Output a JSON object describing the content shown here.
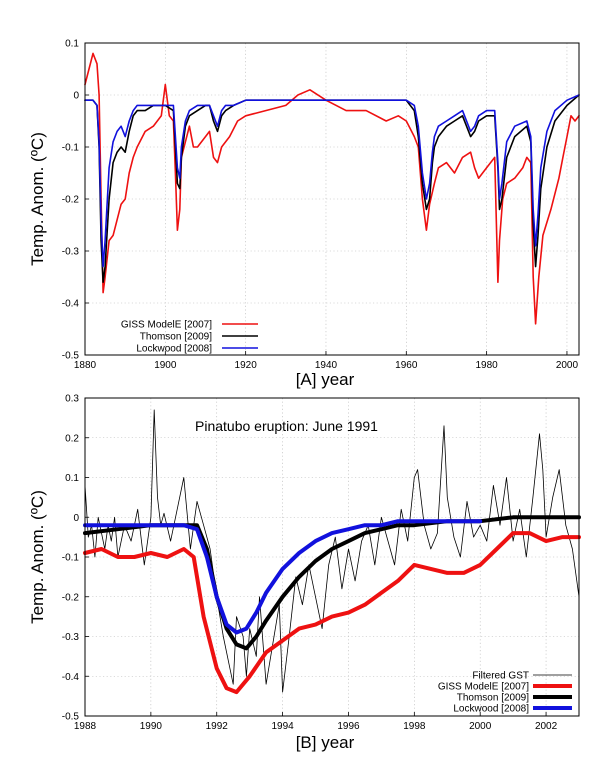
{
  "chart_data": [
    {
      "type": "line",
      "panel": "A",
      "xlabel": "[A]   year",
      "ylabel": "Temp. Anom. (ºC)",
      "xlim": [
        1880,
        2003
      ],
      "ylim": [
        -0.5,
        0.1
      ],
      "xticks": [
        "1880",
        "1900",
        "1920",
        "1940",
        "1960",
        "1980",
        "2000"
      ],
      "yticks": [
        "0.1",
        "0",
        "-0.1",
        "-0.2",
        "-0.3",
        "-0.4",
        "-0.5"
      ],
      "grid": true,
      "legend_position": "bottom-left",
      "series": [
        {
          "name": "GISS ModelE [2007]",
          "color": "#ee1111",
          "x": [
            1880,
            1881,
            1882,
            1883,
            1883.5,
            1884,
            1884.5,
            1885,
            1886,
            1887,
            1888,
            1889,
            1890,
            1891,
            1892,
            1893,
            1895,
            1897,
            1899,
            1900,
            1901,
            1902,
            1902.5,
            1903,
            1903.6,
            1904,
            1905,
            1906,
            1907,
            1908,
            1910,
            1911,
            1912,
            1913,
            1914,
            1916,
            1918,
            1920,
            1925,
            1930,
            1933,
            1936,
            1940,
            1945,
            1950,
            1955,
            1958,
            1960,
            1962,
            1963,
            1964,
            1965,
            1965.8,
            1967,
            1968,
            1970,
            1972,
            1974,
            1976,
            1977,
            1978,
            1980,
            1981,
            1982,
            1982.8,
            1983.2,
            1984,
            1985,
            1987,
            1989,
            1990,
            1991,
            1991.6,
            1992.2,
            1993,
            1994,
            1996,
            1998,
            1999,
            2000,
            2001,
            2002,
            2003
          ],
          "values": [
            0.02,
            0.05,
            0.08,
            0.06,
            0.0,
            -0.2,
            -0.38,
            -0.35,
            -0.28,
            -0.27,
            -0.24,
            -0.21,
            -0.2,
            -0.15,
            -0.12,
            -0.1,
            -0.07,
            -0.06,
            -0.04,
            0.02,
            -0.04,
            -0.05,
            -0.15,
            -0.26,
            -0.22,
            -0.12,
            -0.09,
            -0.06,
            -0.1,
            -0.1,
            -0.08,
            -0.07,
            -0.12,
            -0.13,
            -0.1,
            -0.08,
            -0.05,
            -0.04,
            -0.03,
            -0.02,
            0.0,
            0.01,
            -0.01,
            -0.03,
            -0.03,
            -0.05,
            -0.04,
            -0.05,
            -0.08,
            -0.1,
            -0.2,
            -0.26,
            -0.21,
            -0.17,
            -0.14,
            -0.13,
            -0.15,
            -0.12,
            -0.11,
            -0.14,
            -0.16,
            -0.14,
            -0.13,
            -0.12,
            -0.36,
            -0.28,
            -0.2,
            -0.17,
            -0.16,
            -0.14,
            -0.12,
            -0.13,
            -0.35,
            -0.44,
            -0.35,
            -0.27,
            -0.22,
            -0.16,
            -0.12,
            -0.08,
            -0.04,
            -0.05,
            -0.04
          ]
        },
        {
          "name": "Thomson [2009]",
          "color": "#000000",
          "x": [
            1880,
            1882,
            1883,
            1883.5,
            1884,
            1884.5,
            1885,
            1886,
            1887,
            1888,
            1889,
            1890,
            1891,
            1892,
            1893,
            1895,
            1897,
            1900,
            1902,
            1902.5,
            1903,
            1903.6,
            1904,
            1905,
            1906,
            1908,
            1910,
            1911,
            1912,
            1913,
            1914,
            1915,
            1917,
            1920,
            1930,
            1940,
            1950,
            1955,
            1958,
            1960,
            1962,
            1963,
            1964,
            1965,
            1965.8,
            1966.5,
            1967,
            1968,
            1970,
            1972,
            1974,
            1976,
            1977,
            1978,
            1980,
            1982,
            1982.8,
            1983.2,
            1983.8,
            1985,
            1987,
            1990,
            1991,
            1991.6,
            1992.2,
            1992.8,
            1993.5,
            1995,
            1997,
            2000,
            2003
          ],
          "values": [
            -0.01,
            -0.01,
            -0.02,
            -0.1,
            -0.28,
            -0.36,
            -0.33,
            -0.2,
            -0.13,
            -0.11,
            -0.1,
            -0.11,
            -0.07,
            -0.04,
            -0.03,
            -0.03,
            -0.02,
            -0.02,
            -0.03,
            -0.1,
            -0.17,
            -0.18,
            -0.12,
            -0.06,
            -0.04,
            -0.03,
            -0.02,
            -0.02,
            -0.05,
            -0.07,
            -0.04,
            -0.03,
            -0.02,
            -0.01,
            -0.01,
            -0.01,
            -0.01,
            -0.01,
            -0.01,
            -0.01,
            -0.03,
            -0.08,
            -0.17,
            -0.22,
            -0.2,
            -0.13,
            -0.1,
            -0.08,
            -0.06,
            -0.05,
            -0.04,
            -0.08,
            -0.07,
            -0.05,
            -0.04,
            -0.04,
            -0.14,
            -0.22,
            -0.2,
            -0.12,
            -0.08,
            -0.06,
            -0.09,
            -0.25,
            -0.33,
            -0.27,
            -0.18,
            -0.1,
            -0.05,
            -0.02,
            0.0
          ]
        },
        {
          "name": "Lockwood [2008]",
          "color": "#1111dd",
          "x": [
            1880,
            1882,
            1883,
            1883.5,
            1884,
            1884.5,
            1885,
            1886,
            1887,
            1888,
            1889,
            1890,
            1891,
            1892,
            1893,
            1895,
            1897,
            1900,
            1902,
            1902.5,
            1903,
            1903.6,
            1904,
            1905,
            1906,
            1908,
            1910,
            1911,
            1912,
            1913,
            1914,
            1915,
            1917,
            1920,
            1930,
            1940,
            1950,
            1955,
            1958,
            1960,
            1962,
            1963,
            1964,
            1965,
            1965.8,
            1966.5,
            1967,
            1968,
            1970,
            1972,
            1974,
            1976,
            1977,
            1978,
            1980,
            1982,
            1982.8,
            1983.2,
            1983.8,
            1985,
            1987,
            1990,
            1991,
            1991.6,
            1992.2,
            1992.8,
            1993.5,
            1995,
            1997,
            2000,
            2003
          ],
          "values": [
            -0.01,
            -0.01,
            -0.02,
            -0.09,
            -0.24,
            -0.33,
            -0.28,
            -0.14,
            -0.09,
            -0.07,
            -0.06,
            -0.08,
            -0.05,
            -0.03,
            -0.02,
            -0.02,
            -0.02,
            -0.02,
            -0.02,
            -0.08,
            -0.14,
            -0.16,
            -0.1,
            -0.05,
            -0.03,
            -0.02,
            -0.02,
            -0.02,
            -0.04,
            -0.06,
            -0.03,
            -0.02,
            -0.02,
            -0.01,
            -0.01,
            -0.01,
            -0.01,
            -0.01,
            -0.01,
            -0.01,
            -0.02,
            -0.06,
            -0.15,
            -0.2,
            -0.17,
            -0.11,
            -0.08,
            -0.06,
            -0.05,
            -0.04,
            -0.03,
            -0.07,
            -0.06,
            -0.04,
            -0.03,
            -0.03,
            -0.13,
            -0.2,
            -0.17,
            -0.09,
            -0.06,
            -0.05,
            -0.08,
            -0.22,
            -0.29,
            -0.23,
            -0.14,
            -0.07,
            -0.03,
            -0.01,
            0.0
          ]
        }
      ]
    },
    {
      "type": "line",
      "panel": "B",
      "xlabel": "[B]   year",
      "ylabel": "Temp. Anom. (ºC)",
      "annotation": "Pinatubo eruption: June 1991",
      "xlim": [
        1988,
        2003
      ],
      "ylim": [
        -0.5,
        0.3
      ],
      "xticks": [
        "1988",
        "1990",
        "1992",
        "1994",
        "1996",
        "1998",
        "2000",
        "2002"
      ],
      "yticks": [
        "0.3",
        "0.2",
        "0.1",
        "0",
        "-0.1",
        "-0.2",
        "-0.3",
        "-0.4",
        "-0.5"
      ],
      "grid": true,
      "legend_position": "bottom-right",
      "series": [
        {
          "name": "Filtered GST",
          "color": "#000000",
          "x": [
            1988.0,
            1988.1,
            1988.2,
            1988.3,
            1988.4,
            1988.5,
            1988.6,
            1988.7,
            1988.8,
            1988.9,
            1989.0,
            1989.2,
            1989.4,
            1989.6,
            1989.8,
            1990.0,
            1990.1,
            1990.2,
            1990.3,
            1990.4,
            1990.6,
            1990.8,
            1991.0,
            1991.2,
            1991.4,
            1991.6,
            1991.8,
            1992.0,
            1992.2,
            1992.4,
            1992.5,
            1992.6,
            1992.8,
            1992.9,
            1993.0,
            1993.2,
            1993.3,
            1993.5,
            1993.7,
            1993.9,
            1994.0,
            1994.2,
            1994.4,
            1994.6,
            1994.8,
            1995.0,
            1995.2,
            1995.4,
            1995.6,
            1995.8,
            1996.0,
            1996.2,
            1996.4,
            1996.6,
            1996.8,
            1997.0,
            1997.2,
            1997.4,
            1997.6,
            1997.8,
            1998.0,
            1998.1,
            1998.3,
            1998.5,
            1998.7,
            1998.9,
            1999.0,
            1999.2,
            1999.4,
            1999.6,
            1999.8,
            2000.0,
            2000.2,
            2000.4,
            2000.6,
            2000.8,
            2001.0,
            2001.2,
            2001.4,
            2001.6,
            2001.8,
            2001.9,
            2002.0,
            2002.2,
            2002.4,
            2002.6,
            2002.8,
            2003.0
          ],
          "values": [
            0.08,
            -0.05,
            -0.02,
            -0.1,
            0.0,
            -0.04,
            -0.08,
            -0.02,
            -0.06,
            0.0,
            -0.1,
            -0.02,
            -0.06,
            0.02,
            -0.12,
            0.0,
            0.27,
            0.05,
            -0.02,
            0.01,
            -0.06,
            0.02,
            0.1,
            -0.08,
            0.04,
            -0.02,
            -0.08,
            -0.2,
            -0.3,
            -0.38,
            -0.42,
            -0.25,
            -0.3,
            -0.4,
            -0.28,
            -0.35,
            -0.2,
            -0.42,
            -0.32,
            -0.22,
            -0.44,
            -0.3,
            -0.15,
            -0.22,
            -0.12,
            -0.2,
            -0.28,
            -0.12,
            -0.05,
            -0.18,
            -0.08,
            -0.16,
            -0.06,
            -0.02,
            -0.12,
            0.0,
            -0.06,
            -0.12,
            0.02,
            -0.06,
            0.1,
            0.12,
            -0.02,
            -0.08,
            -0.04,
            0.23,
            0.05,
            -0.05,
            -0.1,
            0.04,
            -0.05,
            -0.02,
            -0.06,
            0.08,
            -0.02,
            0.1,
            -0.06,
            0.02,
            -0.1,
            0.05,
            0.21,
            0.12,
            -0.05,
            0.05,
            0.12,
            -0.02,
            -0.08,
            -0.2
          ]
        },
        {
          "name": "GISS ModelE [2007]",
          "color": "#ee1111",
          "x": [
            1988.0,
            1988.5,
            1989.0,
            1989.5,
            1990.0,
            1990.5,
            1991.0,
            1991.3,
            1991.6,
            1992.0,
            1992.3,
            1992.6,
            1993.0,
            1993.5,
            1994.0,
            1994.5,
            1995.0,
            1995.5,
            1996.0,
            1996.5,
            1997.0,
            1997.5,
            1998.0,
            1998.5,
            1999.0,
            1999.5,
            2000.0,
            2000.5,
            2001.0,
            2001.5,
            2002.0,
            2002.5,
            2003.0
          ],
          "values": [
            -0.09,
            -0.08,
            -0.1,
            -0.1,
            -0.09,
            -0.1,
            -0.08,
            -0.1,
            -0.25,
            -0.38,
            -0.43,
            -0.44,
            -0.4,
            -0.34,
            -0.31,
            -0.28,
            -0.27,
            -0.25,
            -0.24,
            -0.22,
            -0.19,
            -0.16,
            -0.12,
            -0.13,
            -0.14,
            -0.14,
            -0.12,
            -0.08,
            -0.04,
            -0.04,
            -0.06,
            -0.05,
            -0.05
          ]
        },
        {
          "name": "Thomson [2009]",
          "color": "#000000",
          "x": [
            1988.0,
            1989.0,
            1990.0,
            1991.0,
            1991.4,
            1991.7,
            1992.0,
            1992.3,
            1992.6,
            1992.9,
            1993.2,
            1993.5,
            1994.0,
            1994.5,
            1995.0,
            1995.5,
            1996.0,
            1996.5,
            1997.0,
            1997.5,
            1998.0,
            1999.0,
            2000.0,
            2001.0,
            2002.0,
            2003.0
          ],
          "values": [
            -0.04,
            -0.03,
            -0.02,
            -0.02,
            -0.02,
            -0.08,
            -0.2,
            -0.28,
            -0.32,
            -0.33,
            -0.3,
            -0.26,
            -0.2,
            -0.15,
            -0.11,
            -0.08,
            -0.06,
            -0.04,
            -0.03,
            -0.02,
            -0.02,
            -0.01,
            -0.01,
            0.0,
            0.0,
            0.0
          ]
        },
        {
          "name": "Lockwood [2008]",
          "color": "#1111dd",
          "x": [
            1988.0,
            1989.0,
            1990.0,
            1991.0,
            1991.4,
            1991.7,
            1992.0,
            1992.3,
            1992.6,
            1992.9,
            1993.2,
            1993.5,
            1994.0,
            1994.5,
            1995.0,
            1995.5,
            1996.0,
            1996.5,
            1997.0,
            1997.5,
            1998.0,
            1999.0,
            2000.0
          ],
          "values": [
            -0.02,
            -0.02,
            -0.02,
            -0.02,
            -0.03,
            -0.1,
            -0.2,
            -0.27,
            -0.29,
            -0.28,
            -0.24,
            -0.19,
            -0.13,
            -0.09,
            -0.06,
            -0.04,
            -0.03,
            -0.02,
            -0.02,
            -0.01,
            -0.01,
            -0.01,
            -0.01
          ]
        }
      ]
    }
  ]
}
